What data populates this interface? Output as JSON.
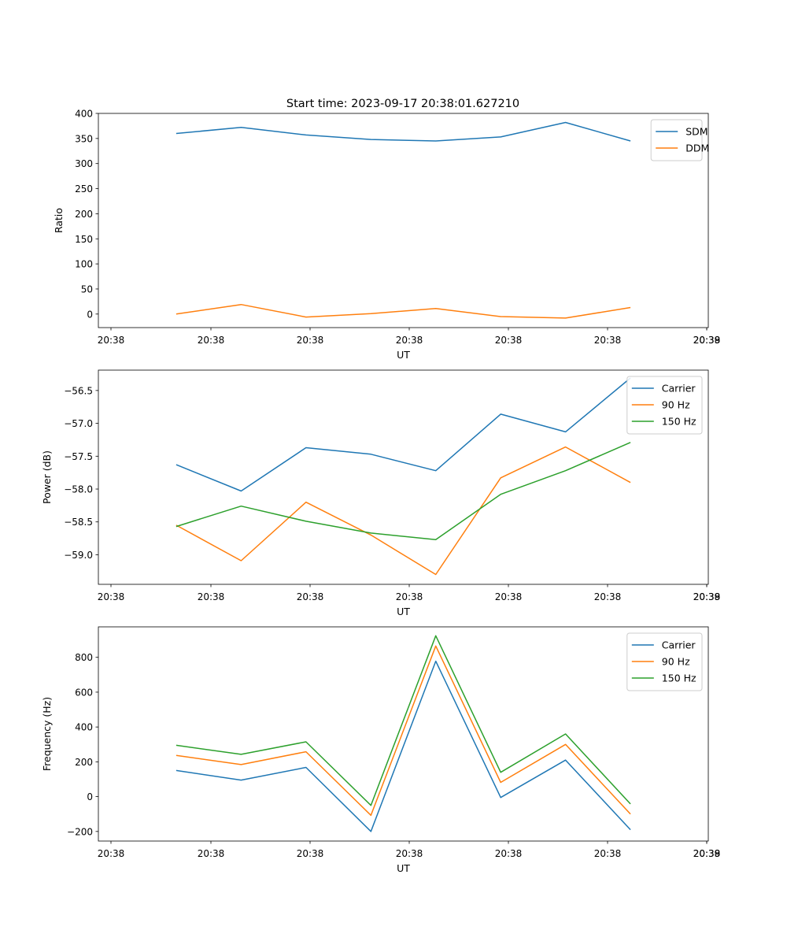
{
  "figure_title": "Start time: 2023-09-17 20:38:01.627210",
  "colors": {
    "blue": "#1f77b4",
    "orange": "#ff7f0e",
    "green": "#2ca02c"
  },
  "chart_data": [
    {
      "type": "line",
      "title": "Start time: 2023-09-17 20:38:01.627210",
      "xlabel": "UT",
      "ylabel": "Ratio",
      "x_tick_labels": [
        "20:38",
        "20:38",
        "20:38",
        "20:38",
        "20:38",
        "20:38",
        "20:38",
        "20:39"
      ],
      "x": [
        1,
        2,
        3,
        4,
        5,
        6,
        7,
        8
      ],
      "xlim": [
        -0.2,
        9.2
      ],
      "ylim": [
        -27,
        400
      ],
      "yticks": [
        0,
        50,
        100,
        150,
        200,
        250,
        300,
        350,
        400
      ],
      "y_tick_labels": [
        "0",
        "50",
        "100",
        "150",
        "200",
        "250",
        "300",
        "350",
        "400"
      ],
      "legend": "top-right",
      "series": [
        {
          "name": "SDM",
          "color": "#1f77b4",
          "values": [
            360,
            372,
            357,
            348,
            345,
            353,
            382,
            345
          ]
        },
        {
          "name": "DDM",
          "color": "#ff7f0e",
          "values": [
            0,
            19,
            -6,
            1,
            11,
            -5,
            -8,
            13
          ]
        }
      ]
    },
    {
      "type": "line",
      "title": "",
      "xlabel": "UT",
      "ylabel": "Power (dB)",
      "x_tick_labels": [
        "20:38",
        "20:38",
        "20:38",
        "20:38",
        "20:38",
        "20:38",
        "20:38",
        "20:39"
      ],
      "x": [
        1,
        2,
        3,
        4,
        5,
        6,
        7,
        8
      ],
      "xlim": [
        -0.2,
        9.2
      ],
      "ylim": [
        -59.45,
        -56.19
      ],
      "yticks": [
        -59.0,
        -58.5,
        -58.0,
        -57.5,
        -57.0,
        -56.5
      ],
      "y_tick_labels": [
        "−59.0",
        "−58.5",
        "−58.0",
        "−57.5",
        "−57.0",
        "−56.5"
      ],
      "legend": "top-right",
      "series": [
        {
          "name": "Carrier",
          "color": "#1f77b4",
          "values": [
            -57.63,
            -58.03,
            -57.37,
            -57.47,
            -57.72,
            -56.86,
            -57.13,
            -56.31
          ]
        },
        {
          "name": "90 Hz",
          "color": "#ff7f0e",
          "values": [
            -58.55,
            -59.09,
            -58.2,
            -58.7,
            -59.3,
            -57.83,
            -57.36,
            -57.9
          ]
        },
        {
          "name": "150 Hz",
          "color": "#2ca02c",
          "values": [
            -58.57,
            -58.26,
            -58.49,
            -58.67,
            -58.77,
            -58.08,
            -57.72,
            -57.29
          ]
        }
      ]
    },
    {
      "type": "line",
      "title": "",
      "xlabel": "UT",
      "ylabel": "Frequency (Hz)",
      "x_tick_labels": [
        "20:38",
        "20:38",
        "20:38",
        "20:38",
        "20:38",
        "20:38",
        "20:38",
        "20:39"
      ],
      "x": [
        1,
        2,
        3,
        4,
        5,
        6,
        7,
        8
      ],
      "xlim": [
        -0.2,
        9.2
      ],
      "ylim": [
        -255,
        975
      ],
      "yticks": [
        -200,
        0,
        200,
        400,
        600,
        800
      ],
      "y_tick_labels": [
        "−200",
        "0",
        "200",
        "400",
        "600",
        "800"
      ],
      "legend": "top-right",
      "series": [
        {
          "name": "Carrier",
          "color": "#1f77b4",
          "values": [
            150,
            95,
            168,
            -200,
            778,
            -5,
            210,
            -190
          ]
        },
        {
          "name": "90 Hz",
          "color": "#ff7f0e",
          "values": [
            237,
            184,
            258,
            -107,
            865,
            82,
            300,
            -100
          ]
        },
        {
          "name": "150 Hz",
          "color": "#2ca02c",
          "values": [
            295,
            243,
            315,
            -50,
            924,
            140,
            360,
            -42
          ]
        }
      ]
    }
  ]
}
